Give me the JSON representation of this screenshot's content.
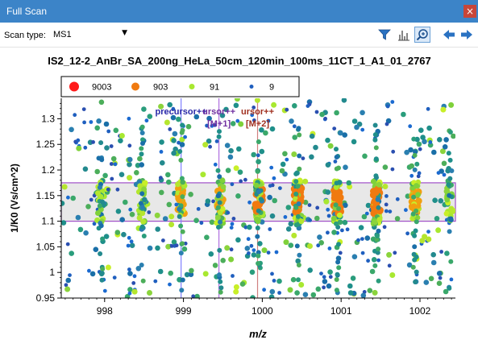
{
  "window": {
    "title": "Full Scan",
    "close_glyph": "×"
  },
  "toolbar": {
    "scan_type_label": "Scan type:",
    "scan_type_value": "MS1",
    "icons": [
      "filter-icon",
      "histogram-icon",
      "zoom-icon",
      "back-arrow-icon",
      "forward-arrow-icon"
    ]
  },
  "chart_data": {
    "type": "scatter",
    "title": "IS2_12-2_AnBr_SA_200ng_HeLa_50cm_120min_100ms_11CT_1_A1_01_2767",
    "xlabel": "m/z",
    "ylabel": "1/K0 (Vs/cm^2)",
    "xlim": [
      997.45,
      1002.45
    ],
    "ylim": [
      0.95,
      1.34
    ],
    "x_ticks": [
      "998",
      "999",
      "1000",
      "1001",
      "1002"
    ],
    "y_ticks": [
      "0.95",
      "1",
      "1.05",
      "1.1",
      "1.15",
      "1.2",
      "1.25",
      "1.3"
    ],
    "legend": {
      "placement": "top-left",
      "entries": [
        {
          "name": "9003",
          "color": "#ff1a1a"
        },
        {
          "name": "903",
          "color": "#f07a10"
        },
        {
          "name": "91",
          "color": "#a8e830"
        },
        {
          "name": "9",
          "color": "#1f5fbf"
        }
      ]
    },
    "highlight_band": {
      "y_range": [
        1.1,
        1.175
      ],
      "x_range": [
        997.45,
        1002.45
      ],
      "fill": "#e8e8e8",
      "edge": "#a050c8"
    },
    "annotations": [
      {
        "mz": 998.97,
        "line_color": "#8080ff",
        "label_line1": "precursor++",
        "label_line2": "",
        "label_color": "#2828a8"
      },
      {
        "mz": 999.45,
        "line_color": "#b070e0",
        "label_line1": "ursor++",
        "label_line2": "[M+1]",
        "label_color": "#7030a0"
      },
      {
        "mz": 999.94,
        "line_color": "#d08080",
        "label_line1": "ursor++",
        "label_line2": "[M+2]",
        "label_color": "#a03020"
      }
    ],
    "ion_columns_mz": [
      997.95,
      998.48,
      998.97,
      999.46,
      999.96,
      1000.45,
      1000.95,
      1001.45,
      1001.94,
      1002.38
    ],
    "ion_column_intensity": [
      "low",
      "low",
      "mid",
      "mid",
      "high",
      "high",
      "high",
      "high",
      "mid",
      "low"
    ]
  }
}
